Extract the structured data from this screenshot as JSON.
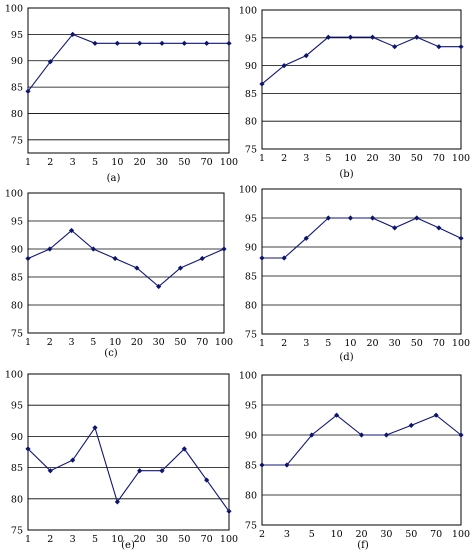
{
  "chart_data": [
    {
      "type": "line",
      "label": "(a)",
      "categories": [
        "1",
        "2",
        "3",
        "5",
        "10",
        "20",
        "30",
        "50",
        "70",
        "100"
      ],
      "values": [
        84.2,
        89.8,
        95.0,
        93.3,
        93.3,
        93.3,
        93.3,
        93.3,
        93.3,
        93.3
      ],
      "yticks": [
        75,
        80,
        85,
        90,
        95,
        100
      ],
      "ylim": [
        72.5,
        100
      ],
      "grid": true
    },
    {
      "type": "line",
      "label": "(b)",
      "categories": [
        "1",
        "2",
        "3",
        "5",
        "10",
        "20",
        "30",
        "50",
        "70",
        "100"
      ],
      "values": [
        86.7,
        90.0,
        91.8,
        95.1,
        95.1,
        95.1,
        93.4,
        95.1,
        93.4,
        93.4
      ],
      "yticks": [
        75,
        80,
        85,
        90,
        95,
        100
      ],
      "ylim": [
        75,
        100
      ],
      "grid": true
    },
    {
      "type": "line",
      "label": "(c)",
      "categories": [
        "1",
        "2",
        "3",
        "5",
        "10",
        "20",
        "30",
        "50",
        "70",
        "100"
      ],
      "values": [
        88.3,
        90.0,
        93.3,
        90.0,
        88.3,
        86.6,
        83.3,
        86.6,
        88.3,
        90.0
      ],
      "yticks": [
        75,
        80,
        85,
        90,
        95,
        100
      ],
      "ylim": [
        75,
        100
      ],
      "grid": true
    },
    {
      "type": "line",
      "label": "(d)",
      "categories": [
        "1",
        "2",
        "3",
        "5",
        "10",
        "20",
        "30",
        "50",
        "70",
        "100"
      ],
      "values": [
        88.1,
        88.1,
        91.5,
        95.0,
        95.0,
        95.0,
        93.3,
        95.0,
        93.3,
        91.5
      ],
      "yticks": [
        75,
        80,
        85,
        90,
        95,
        100
      ],
      "ylim": [
        75,
        100
      ],
      "grid": true
    },
    {
      "type": "line",
      "label": "(e)",
      "categories": [
        "1",
        "2",
        "3",
        "5",
        "10",
        "20",
        "30",
        "50",
        "70",
        "100"
      ],
      "values": [
        88.0,
        84.5,
        86.2,
        91.4,
        79.5,
        84.5,
        84.5,
        88.0,
        83.0,
        78.0
      ],
      "yticks": [
        75,
        80,
        85,
        90,
        95,
        100
      ],
      "ylim": [
        75,
        100
      ],
      "grid": true
    },
    {
      "type": "line",
      "label": "(f)",
      "categories": [
        "2",
        "3",
        "5",
        "10",
        "20",
        "30",
        "50",
        "70",
        "100"
      ],
      "values": [
        85.0,
        85.0,
        90.0,
        93.3,
        90.0,
        90.0,
        91.6,
        93.3,
        90.0
      ],
      "yticks": [
        75,
        80,
        85,
        90,
        95,
        100
      ],
      "ylim": [
        75,
        100
      ],
      "grid": true
    }
  ],
  "colors": {
    "series": "#10167a",
    "marker": "#0d1470",
    "grid": "#000000"
  }
}
